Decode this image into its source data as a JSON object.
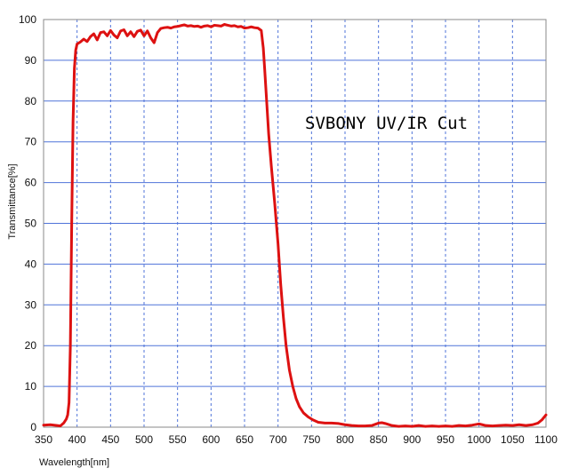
{
  "chart_data": {
    "type": "line",
    "title": "",
    "xlabel": "Wavelength[nm]",
    "ylabel": "Transmittance[%]",
    "annotation": "SVBONY UV/IR Cut",
    "xlim": [
      350,
      1100
    ],
    "ylim": [
      0,
      100
    ],
    "x_ticks": [
      350,
      400,
      450,
      500,
      550,
      600,
      650,
      700,
      750,
      800,
      850,
      900,
      950,
      1000,
      1050,
      1100
    ],
    "y_ticks": [
      0,
      10,
      20,
      30,
      40,
      50,
      60,
      70,
      80,
      90,
      100
    ],
    "grid": {
      "vertical": "dashed",
      "horizontal": "solid",
      "vertical_color": "#4f73d9",
      "horizontal_color": "#4f73d9"
    },
    "series": [
      {
        "color": "#dd1111",
        "points": [
          [
            350,
            0.5
          ],
          [
            360,
            0.6
          ],
          [
            370,
            0.4
          ],
          [
            375,
            0.3
          ],
          [
            380,
            1.0
          ],
          [
            384,
            2.0
          ],
          [
            386,
            3.0
          ],
          [
            388,
            6.0
          ],
          [
            390,
            20.0
          ],
          [
            392,
            50.0
          ],
          [
            394,
            75.0
          ],
          [
            396,
            88.0
          ],
          [
            398,
            92.5
          ],
          [
            400,
            94.0
          ],
          [
            405,
            94.5
          ],
          [
            410,
            95.2
          ],
          [
            415,
            94.6
          ],
          [
            420,
            95.8
          ],
          [
            425,
            96.5
          ],
          [
            430,
            95.0
          ],
          [
            435,
            96.8
          ],
          [
            440,
            97.0
          ],
          [
            445,
            96.0
          ],
          [
            450,
            97.3
          ],
          [
            455,
            96.2
          ],
          [
            460,
            95.5
          ],
          [
            465,
            97.2
          ],
          [
            470,
            97.5
          ],
          [
            475,
            96.0
          ],
          [
            480,
            97.0
          ],
          [
            485,
            95.8
          ],
          [
            490,
            97.1
          ],
          [
            495,
            97.4
          ],
          [
            500,
            96.0
          ],
          [
            505,
            97.2
          ],
          [
            510,
            95.5
          ],
          [
            515,
            94.3
          ],
          [
            520,
            96.8
          ],
          [
            525,
            97.8
          ],
          [
            530,
            98.0
          ],
          [
            535,
            98.1
          ],
          [
            540,
            97.9
          ],
          [
            545,
            98.2
          ],
          [
            550,
            98.3
          ],
          [
            555,
            98.5
          ],
          [
            560,
            98.7
          ],
          [
            565,
            98.4
          ],
          [
            570,
            98.5
          ],
          [
            575,
            98.3
          ],
          [
            580,
            98.4
          ],
          [
            585,
            98.1
          ],
          [
            590,
            98.4
          ],
          [
            595,
            98.5
          ],
          [
            600,
            98.2
          ],
          [
            605,
            98.6
          ],
          [
            610,
            98.5
          ],
          [
            615,
            98.4
          ],
          [
            620,
            98.8
          ],
          [
            625,
            98.6
          ],
          [
            630,
            98.4
          ],
          [
            635,
            98.5
          ],
          [
            640,
            98.2
          ],
          [
            645,
            98.3
          ],
          [
            650,
            97.9
          ],
          [
            655,
            98.0
          ],
          [
            660,
            98.2
          ],
          [
            665,
            98.0
          ],
          [
            670,
            97.9
          ],
          [
            675,
            97.3
          ],
          [
            678,
            93.0
          ],
          [
            680,
            88.0
          ],
          [
            683,
            80.0
          ],
          [
            686,
            72.0
          ],
          [
            690,
            64.0
          ],
          [
            695,
            55.0
          ],
          [
            700,
            45.0
          ],
          [
            704,
            35.0
          ],
          [
            708,
            27.0
          ],
          [
            712,
            20.0
          ],
          [
            717,
            14.0
          ],
          [
            722,
            10.0
          ],
          [
            727,
            7.0
          ],
          [
            732,
            5.0
          ],
          [
            738,
            3.5
          ],
          [
            745,
            2.5
          ],
          [
            752,
            1.8
          ],
          [
            760,
            1.2
          ],
          [
            770,
            1.0
          ],
          [
            780,
            1.0
          ],
          [
            790,
            0.9
          ],
          [
            800,
            0.6
          ],
          [
            810,
            0.4
          ],
          [
            820,
            0.3
          ],
          [
            830,
            0.3
          ],
          [
            840,
            0.4
          ],
          [
            850,
            1.0
          ],
          [
            855,
            1.1
          ],
          [
            860,
            0.9
          ],
          [
            870,
            0.4
          ],
          [
            880,
            0.2
          ],
          [
            890,
            0.3
          ],
          [
            900,
            0.2
          ],
          [
            910,
            0.4
          ],
          [
            920,
            0.2
          ],
          [
            930,
            0.3
          ],
          [
            940,
            0.2
          ],
          [
            950,
            0.3
          ],
          [
            960,
            0.2
          ],
          [
            970,
            0.4
          ],
          [
            980,
            0.3
          ],
          [
            990,
            0.5
          ],
          [
            1000,
            0.8
          ],
          [
            1005,
            0.6
          ],
          [
            1010,
            0.4
          ],
          [
            1020,
            0.3
          ],
          [
            1030,
            0.4
          ],
          [
            1040,
            0.5
          ],
          [
            1050,
            0.4
          ],
          [
            1060,
            0.6
          ],
          [
            1070,
            0.4
          ],
          [
            1080,
            0.6
          ],
          [
            1088,
            1.0
          ],
          [
            1094,
            1.8
          ],
          [
            1100,
            3.0
          ]
        ]
      }
    ]
  }
}
